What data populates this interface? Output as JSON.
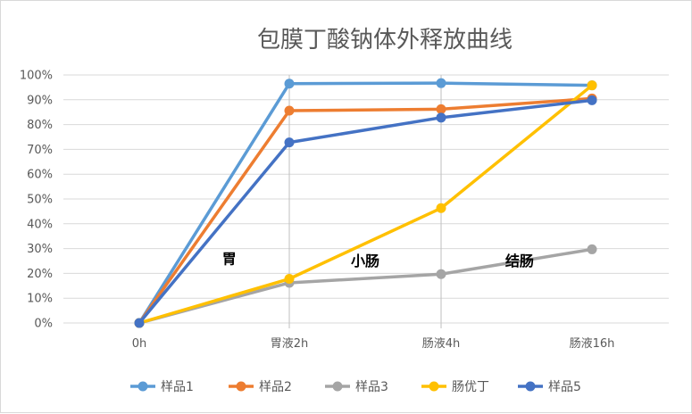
{
  "chart_data": {
    "type": "line",
    "title": "包膜丁酸钠体外释放曲线",
    "categories": [
      "0h",
      "胃液2h",
      "肠液4h",
      "肠液16h"
    ],
    "yticks": [
      "0%",
      "10%",
      "20%",
      "30%",
      "40%",
      "50%",
      "60%",
      "70%",
      "80%",
      "90%",
      "100%"
    ],
    "ylim": [
      0,
      100
    ],
    "grid": true,
    "legend_position": "bottom",
    "series": [
      {
        "name": "样品1",
        "color": "#5B9BD5",
        "values": [
          0,
          96.5,
          96.7,
          95.8
        ]
      },
      {
        "name": "样品2",
        "color": "#ED7D31",
        "values": [
          0,
          85.6,
          86.2,
          90.5
        ]
      },
      {
        "name": "样品3",
        "color": "#A5A5A5",
        "values": [
          0,
          16.2,
          19.7,
          29.7
        ]
      },
      {
        "name": "肠优丁",
        "color": "#FFC000",
        "values": [
          0,
          17.8,
          46.3,
          95.8
        ]
      },
      {
        "name": "样品5",
        "color": "#4472C4",
        "values": [
          0,
          72.8,
          82.8,
          89.8
        ]
      }
    ],
    "annotations": [
      {
        "text": "胃",
        "x": 0.6,
        "y": 24
      },
      {
        "text": "小肠",
        "x": 1.5,
        "y": 23
      },
      {
        "text": "结肠",
        "x": 2.52,
        "y": 23
      }
    ],
    "region_dividers_at_categories": [
      1,
      2
    ]
  }
}
